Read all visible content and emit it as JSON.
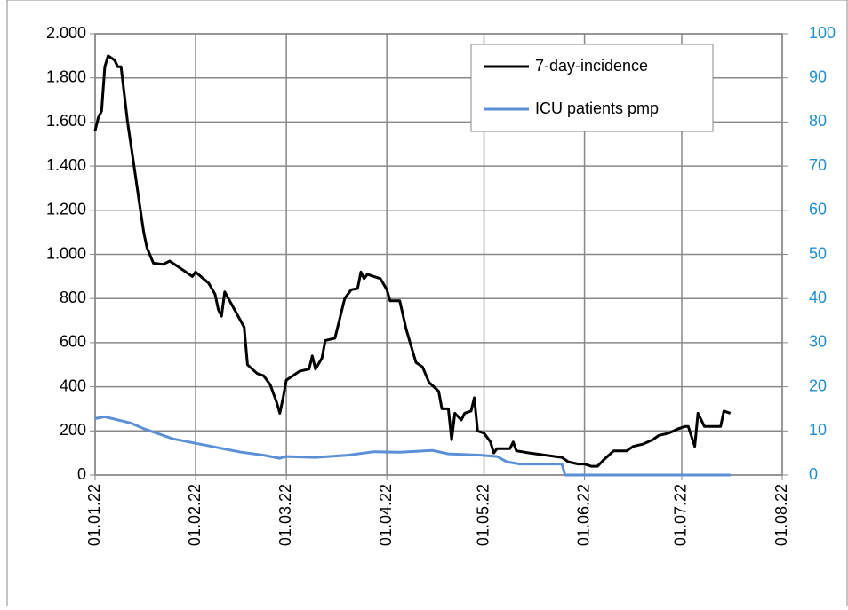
{
  "chart_data": {
    "type": "line",
    "xlim": [
      "2022-01-01",
      "2022-08-01"
    ],
    "xticks": [
      {
        "value": "2022-01-01",
        "label": "01.01.22"
      },
      {
        "value": "2022-02-01",
        "label": "01.02.22"
      },
      {
        "value": "2022-03-01",
        "label": "01.03.22"
      },
      {
        "value": "2022-04-01",
        "label": "01.04.22"
      },
      {
        "value": "2022-05-01",
        "label": "01.05.22"
      },
      {
        "value": "2022-06-01",
        "label": "01.06.22"
      },
      {
        "value": "2022-07-01",
        "label": "01.07.22"
      },
      {
        "value": "2022-08-01",
        "label": "01.08.22"
      }
    ],
    "ylim": [
      0,
      2000
    ],
    "yticks": [
      0,
      200,
      400,
      600,
      800,
      {
        "value": 1000,
        "label": "1.000"
      },
      {
        "value": 1200,
        "label": "1.200"
      },
      {
        "value": 1400,
        "label": "1.400"
      },
      {
        "value": 1600,
        "label": "1.600"
      },
      {
        "value": 1800,
        "label": "1.800"
      },
      {
        "value": 2000,
        "label": "2.000"
      }
    ],
    "y2lim": [
      0,
      100
    ],
    "y2ticks": [
      0,
      10,
      20,
      30,
      40,
      50,
      60,
      70,
      80,
      90,
      100
    ],
    "grid": true,
    "legend": "top-right",
    "series": [
      {
        "name": "7-day-incidence",
        "color": "#000000",
        "x": [
          "2022-01-01",
          "2022-01-02",
          "2022-01-03",
          "2022-01-04",
          "2022-01-05",
          "2022-01-07",
          "2022-01-08",
          "2022-01-09",
          "2022-01-11",
          "2022-01-13",
          "2022-01-15",
          "2022-01-16",
          "2022-01-17",
          "2022-01-19",
          "2022-01-22",
          "2022-01-24",
          "2022-01-27",
          "2022-01-31",
          "2022-02-01",
          "2022-02-05",
          "2022-02-07",
          "2022-02-08",
          "2022-02-09",
          "2022-02-10",
          "2022-02-13",
          "2022-02-16",
          "2022-02-17",
          "2022-02-20",
          "2022-02-22",
          "2022-02-24",
          "2022-02-26",
          "2022-02-27",
          "2022-02-28",
          "2022-03-01",
          "2022-03-03",
          "2022-03-05",
          "2022-03-08",
          "2022-03-09",
          "2022-03-10",
          "2022-03-12",
          "2022-03-13",
          "2022-03-16",
          "2022-03-19",
          "2022-03-21",
          "2022-03-23",
          "2022-03-24",
          "2022-03-25",
          "2022-03-26",
          "2022-03-28",
          "2022-03-30",
          "2022-04-01",
          "2022-04-02",
          "2022-04-05",
          "2022-04-07",
          "2022-04-10",
          "2022-04-12",
          "2022-04-14",
          "2022-04-17",
          "2022-04-18",
          "2022-04-20",
          "2022-04-21",
          "2022-04-22",
          "2022-04-24",
          "2022-04-25",
          "2022-04-27",
          "2022-04-28",
          "2022-04-29",
          "2022-05-01",
          "2022-05-03",
          "2022-05-04",
          "2022-05-05",
          "2022-05-09",
          "2022-05-10",
          "2022-05-11",
          "2022-05-15",
          "2022-05-20",
          "2022-05-25",
          "2022-05-27",
          "2022-05-30",
          "2022-06-01",
          "2022-06-03",
          "2022-06-05",
          "2022-06-07",
          "2022-06-10",
          "2022-06-12",
          "2022-06-14",
          "2022-06-16",
          "2022-06-19",
          "2022-06-22",
          "2022-06-24",
          "2022-06-27",
          "2022-06-30",
          "2022-07-02",
          "2022-07-03",
          "2022-07-05",
          "2022-07-06",
          "2022-07-08",
          "2022-07-13",
          "2022-07-14",
          "2022-07-16"
        ],
        "values": [
          1560,
          1620,
          1650,
          1850,
          1900,
          1880,
          1850,
          1850,
          1600,
          1400,
          1200,
          1100,
          1030,
          960,
          955,
          970,
          940,
          900,
          920,
          870,
          820,
          750,
          720,
          830,
          750,
          670,
          500,
          460,
          450,
          410,
          330,
          280,
          350,
          430,
          450,
          470,
          480,
          540,
          480,
          530,
          610,
          620,
          800,
          840,
          845,
          920,
          890,
          910,
          900,
          890,
          840,
          790,
          790,
          660,
          510,
          490,
          420,
          380,
          300,
          300,
          160,
          280,
          250,
          280,
          290,
          350,
          200,
          190,
          150,
          100,
          120,
          120,
          150,
          110,
          100,
          90,
          80,
          60,
          50,
          50,
          40,
          40,
          70,
          110,
          110,
          110,
          130,
          140,
          160,
          180,
          190,
          210,
          220,
          220,
          130,
          280,
          220,
          220,
          290,
          280
        ]
      },
      {
        "name": "ICU patients pmp",
        "color": "#5b8fd6",
        "axis": "y2",
        "x": [
          "2022-01-01",
          "2022-01-04",
          "2022-01-08",
          "2022-01-12",
          "2022-01-16",
          "2022-01-20",
          "2022-01-25",
          "2022-02-01",
          "2022-02-08",
          "2022-02-15",
          "2022-02-22",
          "2022-02-27",
          "2022-03-01",
          "2022-03-10",
          "2022-03-20",
          "2022-03-28",
          "2022-04-05",
          "2022-04-15",
          "2022-04-20",
          "2022-04-30",
          "2022-05-05",
          "2022-05-08",
          "2022-05-12",
          "2022-05-25",
          "2022-05-26",
          "2022-07-16"
        ],
        "values": [
          12.8,
          13.2,
          12.5,
          11.8,
          10.5,
          9.5,
          8.2,
          7.2,
          6.2,
          5.2,
          4.5,
          3.8,
          4.2,
          4,
          4.5,
          5.3,
          5.2,
          5.6,
          4.8,
          4.5,
          4.2,
          3,
          2.5,
          2.5,
          0,
          0
        ]
      }
    ]
  }
}
